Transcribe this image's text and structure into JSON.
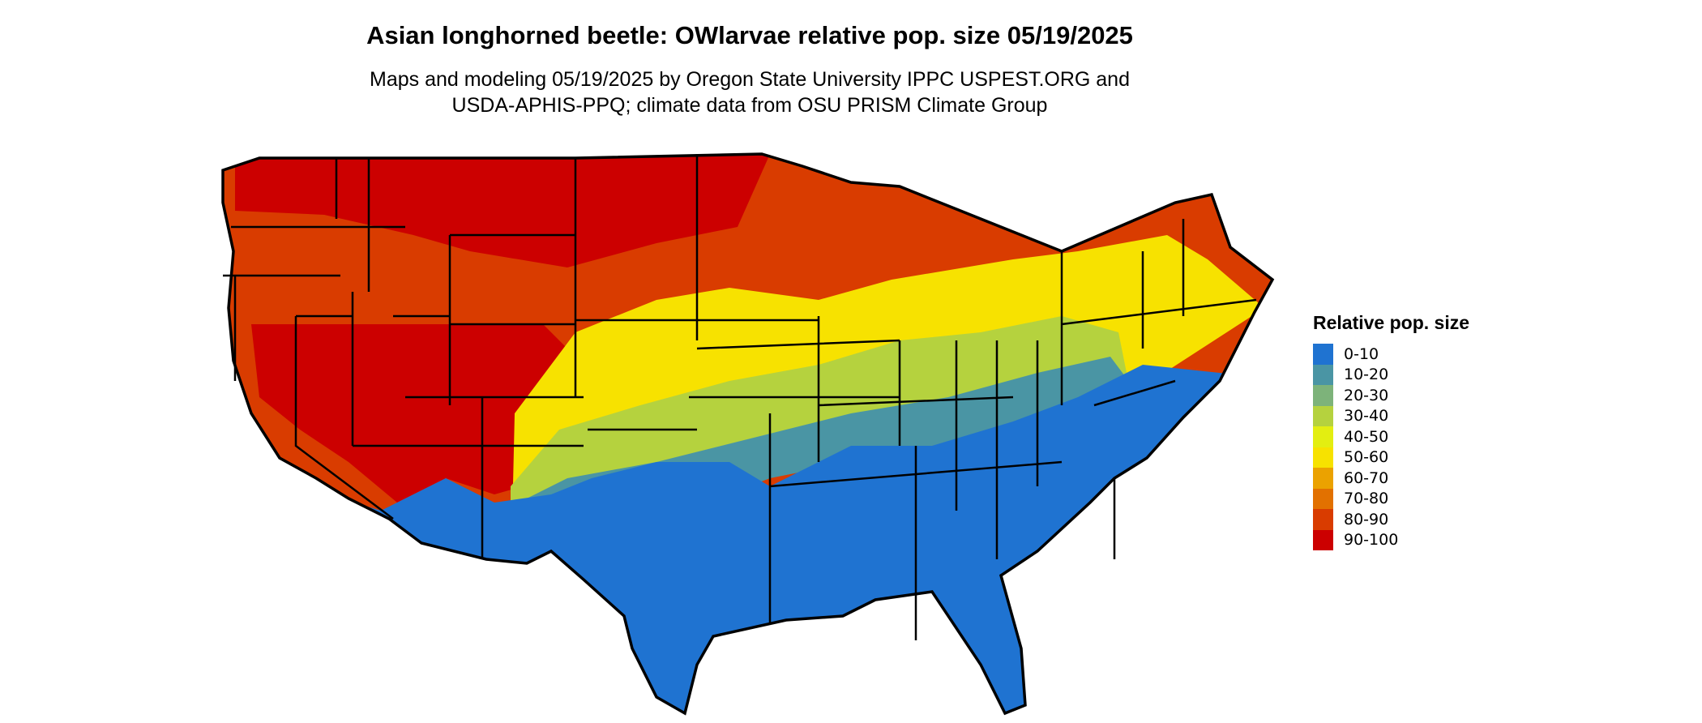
{
  "header": {
    "title": "Asian longhorned beetle: OWlarvae relative pop. size 05/19/2025",
    "subtitle_line1": "Maps and modeling 05/19/2025 by Oregon State University IPPC USPEST.ORG and",
    "subtitle_line2": "USDA-APHIS-PPQ; climate data from OSU PRISM Climate Group"
  },
  "legend": {
    "title": "Relative pop. size",
    "items": [
      {
        "label": "0-10",
        "color": "#1f73d1"
      },
      {
        "label": "10-20",
        "color": "#4a95a4"
      },
      {
        "label": "20-30",
        "color": "#7db37a"
      },
      {
        "label": "30-40",
        "color": "#b5d23e"
      },
      {
        "label": "40-50",
        "color": "#e3ee11"
      },
      {
        "label": "50-60",
        "color": "#f7e200"
      },
      {
        "label": "60-70",
        "color": "#eba200"
      },
      {
        "label": "70-80",
        "color": "#e27100"
      },
      {
        "label": "80-90",
        "color": "#d93c00"
      },
      {
        "label": "90-100",
        "color": "#cc0000"
      }
    ]
  },
  "map": {
    "region": "contiguous-united-states",
    "boundaries": "state-borders"
  }
}
